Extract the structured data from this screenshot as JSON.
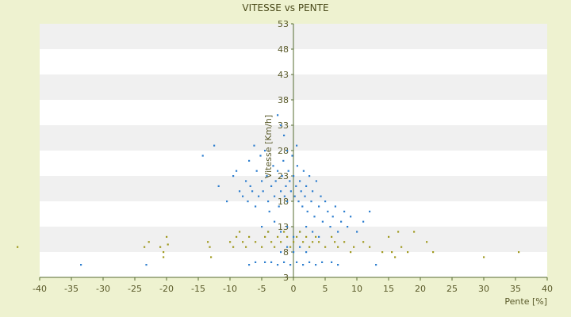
{
  "chart_data": {
    "type": "scatter",
    "title": "VITESSE vs PENTE",
    "xlabel": "Pente [%]",
    "ylabel": "Vitesse [Km/h]",
    "xlim": [
      -40,
      40
    ],
    "ylim": [
      3,
      53
    ],
    "xticks": [
      "-40",
      "-35",
      "-30",
      "-25",
      "-20",
      "-15",
      "-10",
      "-5",
      "0",
      "5",
      "10",
      "15",
      "20",
      "25",
      "30",
      "35",
      "40"
    ],
    "yticks": [
      "3",
      "8",
      "13",
      "18",
      "23",
      "28",
      "33",
      "38",
      "43",
      "48",
      "53"
    ],
    "grid": "horizontal-bands",
    "colors": {
      "background": "#eef2d0",
      "band_white": "#ffffff",
      "band_gray": "#f0f0f0",
      "axis": "#556b2f",
      "series_blue": "#2f7fcf",
      "series_olive": "#a09a20"
    },
    "series": [
      {
        "color": "#2f7fcf",
        "points": [
          [
            -33.5,
            5.5
          ],
          [
            -23.2,
            5.5
          ],
          [
            -14.3,
            27
          ],
          [
            -12.5,
            29
          ],
          [
            -11.8,
            21
          ],
          [
            -10.5,
            18
          ],
          [
            -9.5,
            23
          ],
          [
            -9,
            24
          ],
          [
            -8.5,
            20
          ],
          [
            -8,
            19
          ],
          [
            -7.5,
            22
          ],
          [
            -7.2,
            18
          ],
          [
            -7,
            26
          ],
          [
            -6.8,
            21
          ],
          [
            -6.5,
            20
          ],
          [
            -6.2,
            29
          ],
          [
            -6,
            17
          ],
          [
            -5.8,
            24
          ],
          [
            -5.5,
            19
          ],
          [
            -5.2,
            27
          ],
          [
            -5,
            22
          ],
          [
            -4.8,
            20
          ],
          [
            -4.5,
            28
          ],
          [
            -4.2,
            23
          ],
          [
            -4,
            18
          ],
          [
            -3.8,
            16
          ],
          [
            -3.5,
            21
          ],
          [
            -3.2,
            25
          ],
          [
            -3,
            19
          ],
          [
            -2.8,
            22
          ],
          [
            -2.5,
            24
          ],
          [
            -2.3,
            17
          ],
          [
            -2,
            20
          ],
          [
            -1.8,
            23
          ],
          [
            -1.6,
            26
          ],
          [
            -1.4,
            19
          ],
          [
            -1.2,
            21
          ],
          [
            -1,
            18
          ],
          [
            -0.8,
            24
          ],
          [
            -0.6,
            22
          ],
          [
            -0.4,
            20
          ],
          [
            -0.2,
            27
          ],
          [
            0,
            23
          ],
          [
            0.2,
            19
          ],
          [
            0.4,
            21
          ],
          [
            0.6,
            25
          ],
          [
            0.8,
            18
          ],
          [
            1,
            22
          ],
          [
            1.2,
            20
          ],
          [
            1.4,
            17
          ],
          [
            1.6,
            24
          ],
          [
            1.8,
            19
          ],
          [
            2,
            21
          ],
          [
            2.2,
            16
          ],
          [
            2.5,
            23
          ],
          [
            2.8,
            18
          ],
          [
            3,
            20
          ],
          [
            3.3,
            15
          ],
          [
            3.6,
            22
          ],
          [
            4,
            17
          ],
          [
            4.3,
            19
          ],
          [
            4.6,
            14
          ],
          [
            5,
            18
          ],
          [
            5.4,
            16
          ],
          [
            5.8,
            13
          ],
          [
            6.2,
            15
          ],
          [
            6.6,
            17
          ],
          [
            7,
            12
          ],
          [
            7.5,
            14
          ],
          [
            8,
            16
          ],
          [
            8.5,
            13
          ],
          [
            9,
            15
          ],
          [
            10,
            12
          ],
          [
            11,
            14
          ],
          [
            12,
            16
          ],
          [
            -2,
            33
          ],
          [
            -1.5,
            31
          ],
          [
            -2.5,
            35
          ],
          [
            -1,
            28
          ],
          [
            0.5,
            29
          ],
          [
            -3,
            14
          ],
          [
            -2,
            12
          ],
          [
            -1,
            13
          ],
          [
            0,
            11
          ],
          [
            1,
            12
          ],
          [
            2,
            13
          ],
          [
            3,
            12
          ],
          [
            -4,
            12
          ],
          [
            -5,
            13
          ],
          [
            4,
            11
          ],
          [
            -3.5,
            6
          ],
          [
            -2.5,
            5.5
          ],
          [
            -1.5,
            6
          ],
          [
            -0.5,
            5.5
          ],
          [
            0.5,
            6
          ],
          [
            1.5,
            5.5
          ],
          [
            2.5,
            6
          ],
          [
            3.5,
            5.5
          ],
          [
            -4.5,
            6
          ],
          [
            4.5,
            6
          ],
          [
            -1,
            9
          ],
          [
            0,
            8
          ],
          [
            1,
            9
          ],
          [
            -2,
            8
          ],
          [
            2,
            8
          ],
          [
            -6,
            6
          ],
          [
            6,
            6
          ],
          [
            7,
            5.5
          ],
          [
            -7,
            5.5
          ],
          [
            13,
            5.5
          ]
        ]
      },
      {
        "color": "#a09a20",
        "points": [
          [
            -43.5,
            9
          ],
          [
            -23.5,
            9
          ],
          [
            -22.8,
            10
          ],
          [
            -21,
            9
          ],
          [
            -20.5,
            8
          ],
          [
            -20.5,
            7
          ],
          [
            -20,
            11
          ],
          [
            -19.8,
            9.5
          ],
          [
            -13.5,
            10
          ],
          [
            -13.2,
            9
          ],
          [
            -13,
            7
          ],
          [
            -10,
            10
          ],
          [
            -9.5,
            9
          ],
          [
            -9,
            11
          ],
          [
            -8.5,
            12
          ],
          [
            -8,
            10
          ],
          [
            -7.5,
            9
          ],
          [
            -7,
            11
          ],
          [
            -6,
            10
          ],
          [
            -5,
            9
          ],
          [
            -4.5,
            11
          ],
          [
            -4,
            12
          ],
          [
            -3.5,
            10
          ],
          [
            -3,
            9
          ],
          [
            -2.5,
            11
          ],
          [
            -2,
            10
          ],
          [
            -1.5,
            12
          ],
          [
            -1,
            11
          ],
          [
            -0.5,
            9
          ],
          [
            0,
            10
          ],
          [
            0.5,
            11
          ],
          [
            1,
            12
          ],
          [
            1.5,
            10
          ],
          [
            2,
            11
          ],
          [
            2.5,
            9
          ],
          [
            3,
            10
          ],
          [
            3.5,
            11
          ],
          [
            4,
            10
          ],
          [
            5,
            9
          ],
          [
            6,
            11
          ],
          [
            6.5,
            10
          ],
          [
            7,
            9
          ],
          [
            8,
            10
          ],
          [
            9,
            8
          ],
          [
            9.5,
            9
          ],
          [
            11,
            10
          ],
          [
            12,
            9
          ],
          [
            14,
            8
          ],
          [
            15,
            11
          ],
          [
            15.5,
            8
          ],
          [
            16,
            7
          ],
          [
            16.5,
            12
          ],
          [
            17,
            9
          ],
          [
            18,
            8
          ],
          [
            19,
            12
          ],
          [
            21,
            10
          ],
          [
            22,
            8
          ],
          [
            30,
            7
          ],
          [
            35.5,
            8
          ]
        ]
      }
    ]
  }
}
